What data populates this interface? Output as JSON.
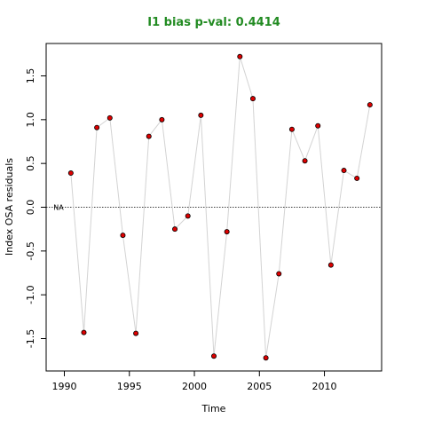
{
  "title": "I1 bias p-val: 0.4414",
  "title_color": "#228b22",
  "point_fill": "#dd0000",
  "line_color": "#d3d3d3",
  "chart_data": {
    "type": "line",
    "title": "I1 bias p-val: 0.4414",
    "xlabel": "Time",
    "ylabel": "Index OSA residuals",
    "xlim": [
      1988.6,
      2014.4
    ],
    "ylim": [
      -1.87,
      1.87
    ],
    "x_ticks": [
      1990,
      1995,
      2000,
      2005,
      2010
    ],
    "x_tick_labels": [
      "1990",
      "1995",
      "2000",
      "2005",
      "2010"
    ],
    "y_ticks": [
      -1.5,
      -1.0,
      -0.5,
      0.0,
      0.5,
      1.0,
      1.5
    ],
    "y_tick_labels": [
      "-1.5",
      "-1.0",
      "-0.5",
      "0.0",
      "0.5",
      "1.0",
      "1.5"
    ],
    "reference_line": 0,
    "reference_label": "NA",
    "grid": false,
    "x": [
      1990.5,
      1991.5,
      1992.5,
      1993.5,
      1994.5,
      1995.5,
      1996.5,
      1997.5,
      1998.5,
      1999.5,
      2000.5,
      2001.5,
      2002.5,
      2003.5,
      2004.5,
      2005.5,
      2006.5,
      2007.5,
      2008.5,
      2009.5,
      2010.5,
      2011.5,
      2012.5,
      2013.5
    ],
    "values": [
      0.39,
      -1.43,
      0.91,
      1.02,
      -0.32,
      -1.44,
      0.81,
      1.0,
      -0.25,
      -0.1,
      1.05,
      -1.7,
      -0.28,
      1.72,
      1.24,
      -1.72,
      -0.76,
      0.89,
      0.53,
      0.93,
      -0.66,
      0.42,
      0.33,
      1.17
    ]
  }
}
